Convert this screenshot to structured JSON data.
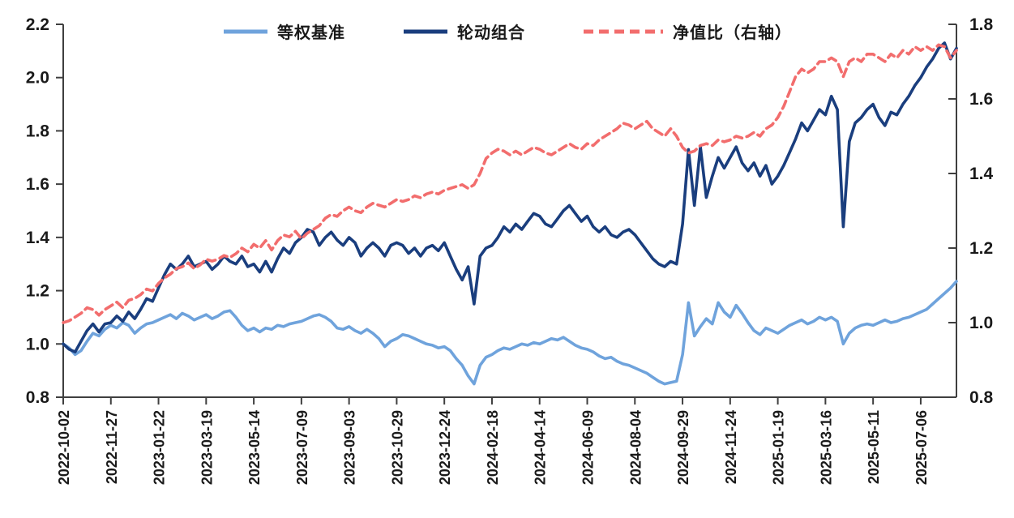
{
  "chart_data": {
    "type": "line",
    "title": "",
    "legend_position": "top",
    "grid": false,
    "left_axis": {
      "min": 0.8,
      "max": 2.2,
      "ticks": [
        "2.2",
        "2.0",
        "1.8",
        "1.6",
        "1.4",
        "1.2",
        "1.0",
        "0.8"
      ],
      "tick_values": [
        2.2,
        2.0,
        1.8,
        1.6,
        1.4,
        1.2,
        1.0,
        0.8
      ]
    },
    "right_axis": {
      "min": 0.8,
      "max": 1.8,
      "ticks": [
        "1.8",
        "1.6",
        "1.4",
        "1.2",
        "1.0",
        "0.8"
      ],
      "tick_values": [
        1.8,
        1.6,
        1.4,
        1.2,
        1.0,
        0.8
      ]
    },
    "x_tick_labels": [
      "2022-10-02",
      "2022-11-27",
      "2023-01-22",
      "2023-03-19",
      "2023-05-14",
      "2023-07-09",
      "2023-09-03",
      "2023-10-29",
      "2023-12-24",
      "2024-02-18",
      "2024-04-14",
      "2024-06-09",
      "2024-08-04",
      "2024-09-29",
      "2024-11-24",
      "2025-01-19",
      "2025-03-16",
      "2025-05-11",
      "2025-07-06"
    ],
    "x_points_per_tick": 8,
    "x_resolution": "weekly",
    "axis_color": "#3f3f3f",
    "label_color": "#1a1a1a",
    "series": [
      {
        "name": "等权基准",
        "axis": "left",
        "color": "#6FA3DC",
        "style": "solid",
        "values": [
          1.0,
          0.985,
          0.96,
          0.975,
          1.01,
          1.04,
          1.03,
          1.055,
          1.07,
          1.06,
          1.08,
          1.07,
          1.04,
          1.06,
          1.075,
          1.08,
          1.09,
          1.1,
          1.11,
          1.095,
          1.115,
          1.105,
          1.09,
          1.1,
          1.11,
          1.095,
          1.105,
          1.12,
          1.125,
          1.1,
          1.07,
          1.05,
          1.06,
          1.045,
          1.06,
          1.055,
          1.07,
          1.065,
          1.075,
          1.08,
          1.085,
          1.095,
          1.105,
          1.11,
          1.1,
          1.085,
          1.06,
          1.055,
          1.065,
          1.05,
          1.04,
          1.055,
          1.04,
          1.02,
          0.99,
          1.01,
          1.02,
          1.035,
          1.03,
          1.02,
          1.01,
          1.0,
          0.995,
          0.985,
          0.99,
          0.975,
          0.945,
          0.92,
          0.88,
          0.85,
          0.92,
          0.95,
          0.96,
          0.975,
          0.985,
          0.98,
          0.99,
          1.0,
          0.995,
          1.005,
          1.0,
          1.01,
          1.02,
          1.015,
          1.025,
          1.01,
          0.995,
          0.985,
          0.98,
          0.97,
          0.955,
          0.945,
          0.95,
          0.935,
          0.925,
          0.92,
          0.91,
          0.9,
          0.89,
          0.875,
          0.86,
          0.85,
          0.855,
          0.86,
          0.96,
          1.155,
          1.03,
          1.065,
          1.095,
          1.075,
          1.155,
          1.12,
          1.1,
          1.145,
          1.115,
          1.08,
          1.05,
          1.035,
          1.06,
          1.05,
          1.04,
          1.055,
          1.07,
          1.08,
          1.09,
          1.075,
          1.085,
          1.1,
          1.09,
          1.1,
          1.085,
          1.0,
          1.04,
          1.06,
          1.07,
          1.075,
          1.07,
          1.08,
          1.09,
          1.08,
          1.085,
          1.095,
          1.1,
          1.11,
          1.12,
          1.13,
          1.15,
          1.17,
          1.19,
          1.21,
          1.235
        ]
      },
      {
        "name": "轮动组合",
        "axis": "left",
        "color": "#1A3E7E",
        "style": "solid",
        "values": [
          1.0,
          0.98,
          0.97,
          1.01,
          1.05,
          1.075,
          1.045,
          1.075,
          1.08,
          1.105,
          1.085,
          1.12,
          1.095,
          1.13,
          1.17,
          1.16,
          1.21,
          1.26,
          1.3,
          1.28,
          1.3,
          1.33,
          1.29,
          1.3,
          1.31,
          1.28,
          1.3,
          1.33,
          1.31,
          1.3,
          1.33,
          1.29,
          1.3,
          1.27,
          1.31,
          1.27,
          1.32,
          1.36,
          1.34,
          1.38,
          1.4,
          1.43,
          1.42,
          1.37,
          1.4,
          1.42,
          1.39,
          1.37,
          1.4,
          1.38,
          1.33,
          1.36,
          1.38,
          1.36,
          1.33,
          1.37,
          1.38,
          1.37,
          1.34,
          1.36,
          1.33,
          1.36,
          1.37,
          1.35,
          1.38,
          1.33,
          1.28,
          1.24,
          1.29,
          1.15,
          1.33,
          1.36,
          1.37,
          1.4,
          1.44,
          1.42,
          1.45,
          1.43,
          1.46,
          1.49,
          1.48,
          1.45,
          1.44,
          1.47,
          1.5,
          1.52,
          1.49,
          1.46,
          1.48,
          1.44,
          1.42,
          1.44,
          1.41,
          1.4,
          1.42,
          1.43,
          1.41,
          1.38,
          1.35,
          1.32,
          1.3,
          1.29,
          1.31,
          1.3,
          1.45,
          1.73,
          1.52,
          1.74,
          1.55,
          1.63,
          1.7,
          1.66,
          1.7,
          1.74,
          1.68,
          1.65,
          1.68,
          1.63,
          1.67,
          1.6,
          1.63,
          1.67,
          1.72,
          1.77,
          1.83,
          1.8,
          1.84,
          1.88,
          1.86,
          1.93,
          1.88,
          1.44,
          1.76,
          1.83,
          1.85,
          1.88,
          1.9,
          1.85,
          1.82,
          1.87,
          1.86,
          1.9,
          1.93,
          1.97,
          2.0,
          2.04,
          2.07,
          2.11,
          2.13,
          2.07,
          2.11
        ]
      },
      {
        "name": "净值比（右轴）",
        "axis": "right",
        "color": "#F26D6D",
        "style": "dashed",
        "values": [
          1.0,
          1.005,
          1.015,
          1.025,
          1.04,
          1.035,
          1.02,
          1.035,
          1.045,
          1.055,
          1.04,
          1.06,
          1.065,
          1.075,
          1.09,
          1.085,
          1.105,
          1.12,
          1.13,
          1.145,
          1.15,
          1.16,
          1.145,
          1.155,
          1.17,
          1.165,
          1.17,
          1.18,
          1.175,
          1.185,
          1.2,
          1.19,
          1.21,
          1.2,
          1.22,
          1.195,
          1.22,
          1.235,
          1.23,
          1.245,
          1.225,
          1.24,
          1.25,
          1.26,
          1.28,
          1.29,
          1.285,
          1.3,
          1.31,
          1.3,
          1.295,
          1.31,
          1.32,
          1.315,
          1.31,
          1.32,
          1.33,
          1.325,
          1.33,
          1.34,
          1.335,
          1.345,
          1.35,
          1.345,
          1.355,
          1.36,
          1.365,
          1.37,
          1.36,
          1.37,
          1.4,
          1.44,
          1.455,
          1.465,
          1.46,
          1.45,
          1.46,
          1.45,
          1.46,
          1.47,
          1.465,
          1.455,
          1.45,
          1.46,
          1.47,
          1.48,
          1.47,
          1.465,
          1.48,
          1.475,
          1.49,
          1.5,
          1.51,
          1.52,
          1.535,
          1.53,
          1.52,
          1.53,
          1.54,
          1.52,
          1.51,
          1.5,
          1.52,
          1.5,
          1.47,
          1.455,
          1.46,
          1.475,
          1.48,
          1.475,
          1.49,
          1.485,
          1.49,
          1.5,
          1.495,
          1.5,
          1.51,
          1.5,
          1.52,
          1.53,
          1.55,
          1.58,
          1.62,
          1.66,
          1.68,
          1.67,
          1.68,
          1.7,
          1.7,
          1.71,
          1.7,
          1.66,
          1.7,
          1.71,
          1.7,
          1.72,
          1.72,
          1.71,
          1.7,
          1.72,
          1.71,
          1.73,
          1.72,
          1.74,
          1.73,
          1.74,
          1.73,
          1.745,
          1.74,
          1.71,
          1.73
        ]
      }
    ]
  }
}
